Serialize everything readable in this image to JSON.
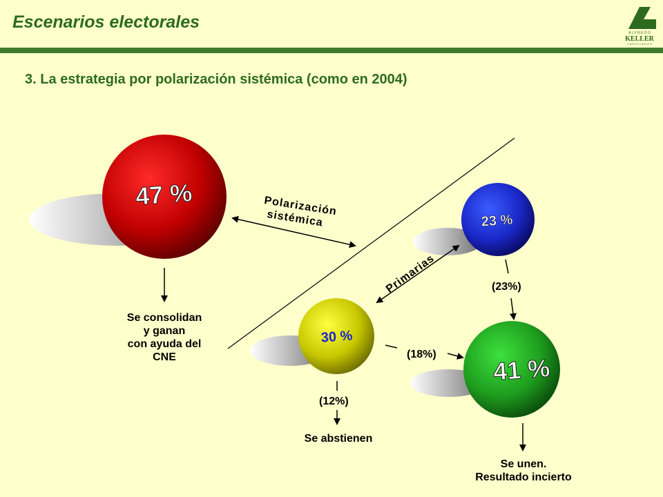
{
  "header": {
    "title": "Escenarios electorales",
    "logo_text": "KELLER",
    "logo_top": "A L F R E D O",
    "logo_bottom": "Y  A S O C I A D O S"
  },
  "subtitle": "3. La estrategia por polarización sistémica (como en 2004)",
  "bubbles": {
    "red": {
      "label": "47 %",
      "color": "#c00000"
    },
    "blue": {
      "label": "23 %",
      "color": "#1a28c8"
    },
    "yellow": {
      "label": "30 %",
      "color": "#c8c800"
    },
    "green": {
      "label": "41 %",
      "color": "#1e9e1e"
    }
  },
  "labels": {
    "polarizacion_line1": "Polarización",
    "polarizacion_line2": "sistémica",
    "primarias": "Primarias",
    "p23": "(23%)",
    "p18": "(18%)",
    "p12": "(12%)",
    "consolidan": [
      "Se consolidan",
      "y ganan",
      "con ayuda del",
      "CNE"
    ],
    "abstienen": "Se abstienen",
    "unen": [
      "Se unen.",
      "Resultado incierto"
    ]
  }
}
